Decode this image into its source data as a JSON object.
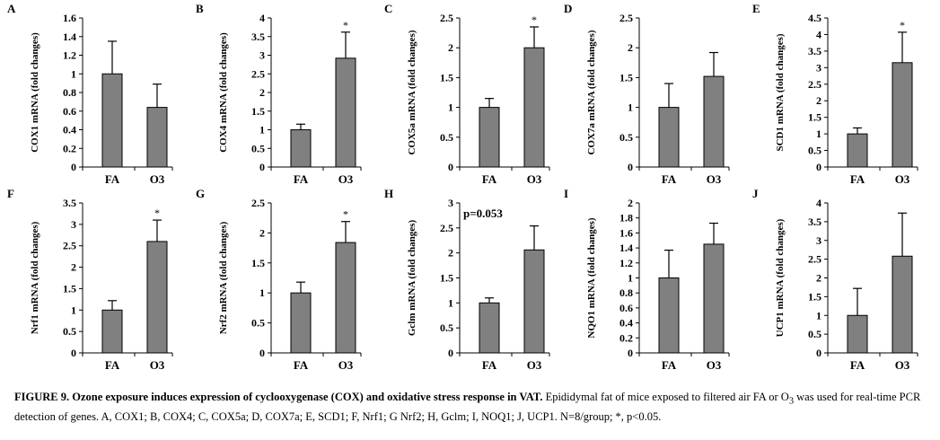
{
  "chart_data": [
    {
      "panel": "A",
      "type": "bar",
      "ylabel": "COX1 mRNA (fold changes)",
      "categories": [
        "FA",
        "O3"
      ],
      "values": [
        1.0,
        0.64
      ],
      "errors": [
        0.35,
        0.25
      ],
      "ylim": [
        0,
        1.6
      ],
      "yticks": [
        "0",
        "0.2",
        "0.4",
        "0.6",
        "0.8",
        "1",
        "1.2",
        "1.4",
        "1.6"
      ],
      "annotation": ""
    },
    {
      "panel": "B",
      "type": "bar",
      "ylabel": "COX4 mRNA (fold changes)",
      "categories": [
        "FA",
        "O3"
      ],
      "values": [
        1.0,
        2.92
      ],
      "errors": [
        0.15,
        0.7
      ],
      "ylim": [
        0,
        4
      ],
      "yticks": [
        "0",
        "0.5",
        "1",
        "1.5",
        "2",
        "2.5",
        "3",
        "3.5",
        "4"
      ],
      "annotation": "*"
    },
    {
      "panel": "C",
      "type": "bar",
      "ylabel": "COX5a mRNA (fold changes)",
      "categories": [
        "FA",
        "O3"
      ],
      "values": [
        1.0,
        2.0
      ],
      "errors": [
        0.15,
        0.35
      ],
      "ylim": [
        0,
        2.5
      ],
      "yticks": [
        "0",
        "0.5",
        "1",
        "1.5",
        "2",
        "2.5"
      ],
      "annotation": "*"
    },
    {
      "panel": "D",
      "type": "bar",
      "ylabel": "COX7a mRNA (fold changes)",
      "categories": [
        "FA",
        "O3"
      ],
      "values": [
        1.0,
        1.52
      ],
      "errors": [
        0.4,
        0.4
      ],
      "ylim": [
        0,
        2.5
      ],
      "yticks": [
        "0",
        "0.5",
        "1",
        "1.5",
        "2",
        "2.5"
      ],
      "annotation": ""
    },
    {
      "panel": "E",
      "type": "bar",
      "ylabel": "SCD1 mRNA (fold changes)",
      "categories": [
        "FA",
        "O3"
      ],
      "values": [
        1.0,
        3.15
      ],
      "errors": [
        0.18,
        0.92
      ],
      "ylim": [
        0,
        4.5
      ],
      "yticks": [
        "0",
        "0.5",
        "1",
        "1.5",
        "2",
        "2.5",
        "3",
        "3.5",
        "4",
        "4.5"
      ],
      "annotation": "*"
    },
    {
      "panel": "F",
      "type": "bar",
      "ylabel": "Nrf1 mRNA (fold changes)",
      "categories": [
        "FA",
        "O3"
      ],
      "values": [
        1.0,
        2.6
      ],
      "errors": [
        0.22,
        0.5
      ],
      "ylim": [
        0,
        3.5
      ],
      "yticks": [
        "0",
        "0.5",
        "1",
        "1.5",
        "2",
        "2.5",
        "3",
        "3.5"
      ],
      "annotation": "*"
    },
    {
      "panel": "G",
      "type": "bar",
      "ylabel": "Nrf2 mRNA (fold changes)",
      "categories": [
        "FA",
        "O3"
      ],
      "values": [
        1.0,
        1.84
      ],
      "errors": [
        0.18,
        0.35
      ],
      "ylim": [
        0,
        2.5
      ],
      "yticks": [
        "0",
        "0.5",
        "1",
        "1.5",
        "2",
        "2.5"
      ],
      "annotation": "*"
    },
    {
      "panel": "H",
      "type": "bar",
      "ylabel": "Gclm mRNA (fold changes)",
      "categories": [
        "FA",
        "O3"
      ],
      "values": [
        1.0,
        2.06
      ],
      "errors": [
        0.1,
        0.48
      ],
      "ylim": [
        0,
        3
      ],
      "yticks": [
        "0",
        "0.5",
        "1",
        "1.5",
        "2",
        "2.5",
        "3"
      ],
      "annotation": "p=0.053"
    },
    {
      "panel": "I",
      "type": "bar",
      "ylabel": "NQO1 mRNA (fold changes)",
      "categories": [
        "FA",
        "O3"
      ],
      "values": [
        1.0,
        1.45
      ],
      "errors": [
        0.37,
        0.28
      ],
      "ylim": [
        0,
        2
      ],
      "yticks": [
        "0",
        "0.2",
        "0.4",
        "0.6",
        "0.8",
        "1",
        "1.2",
        "1.4",
        "1.6",
        "1.8",
        "2"
      ],
      "annotation": ""
    },
    {
      "panel": "J",
      "type": "bar",
      "ylabel": "UCP1 mRNA (fold changes)",
      "categories": [
        "FA",
        "O3"
      ],
      "values": [
        1.0,
        2.58
      ],
      "errors": [
        0.72,
        1.15
      ],
      "ylim": [
        0,
        4
      ],
      "yticks": [
        "0",
        "0.5",
        "1",
        "1.5",
        "2",
        "2.5",
        "3",
        "3.5",
        "4"
      ],
      "annotation": ""
    }
  ],
  "caption": {
    "lead": "FIGURE 9.  Ozone exposure induces expression of cyclooxygenase (COX) and oxidative stress response in VAT.",
    "body_1": " Epididymal fat of mice exposed to filtered air FA or O",
    "body_sub": "3",
    "body_2": " was used for real-time PCR detection of genes. A, COX1; B, COX4; C, COX5a; D, COX7a; E, SCD1; F, Nrf1; G Nrf2; H, Gclm; I, NOQ1; J, UCP1. N=8/group; *, p<0.05."
  }
}
